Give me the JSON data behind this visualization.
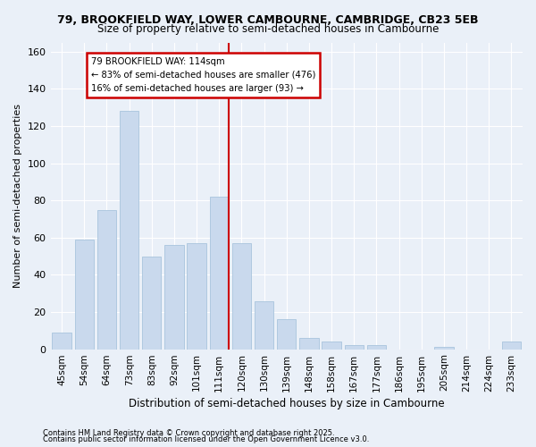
{
  "title1": "79, BROOKFIELD WAY, LOWER CAMBOURNE, CAMBRIDGE, CB23 5EB",
  "title2": "Size of property relative to semi-detached houses in Cambourne",
  "xlabel": "Distribution of semi-detached houses by size in Cambourne",
  "ylabel": "Number of semi-detached properties",
  "categories": [
    "45sqm",
    "54sqm",
    "64sqm",
    "73sqm",
    "83sqm",
    "92sqm",
    "101sqm",
    "111sqm",
    "120sqm",
    "130sqm",
    "139sqm",
    "148sqm",
    "158sqm",
    "167sqm",
    "177sqm",
    "186sqm",
    "195sqm",
    "205sqm",
    "214sqm",
    "224sqm",
    "233sqm"
  ],
  "values": [
    9,
    59,
    75,
    128,
    50,
    56,
    57,
    82,
    57,
    26,
    16,
    6,
    4,
    2,
    2,
    0,
    0,
    1,
    0,
    0,
    4
  ],
  "bar_color": "#c9d9ed",
  "bar_edgecolor": "#a8c4dd",
  "vline_index": 7,
  "annotation_line1": "79 BROOKFIELD WAY: 114sqm",
  "annotation_line2": "← 83% of semi-detached houses are smaller (476)",
  "annotation_line3": "16% of semi-detached houses are larger (93) →",
  "ylim": [
    0,
    165
  ],
  "yticks": [
    0,
    20,
    40,
    60,
    80,
    100,
    120,
    140,
    160
  ],
  "footnote1": "Contains HM Land Registry data © Crown copyright and database right 2025.",
  "footnote2": "Contains public sector information licensed under the Open Government Licence v3.0.",
  "bg_color": "#eaf0f8",
  "grid_color": "#ffffff",
  "annotation_box_edgecolor": "#cc0000",
  "vline_color": "#cc0000"
}
